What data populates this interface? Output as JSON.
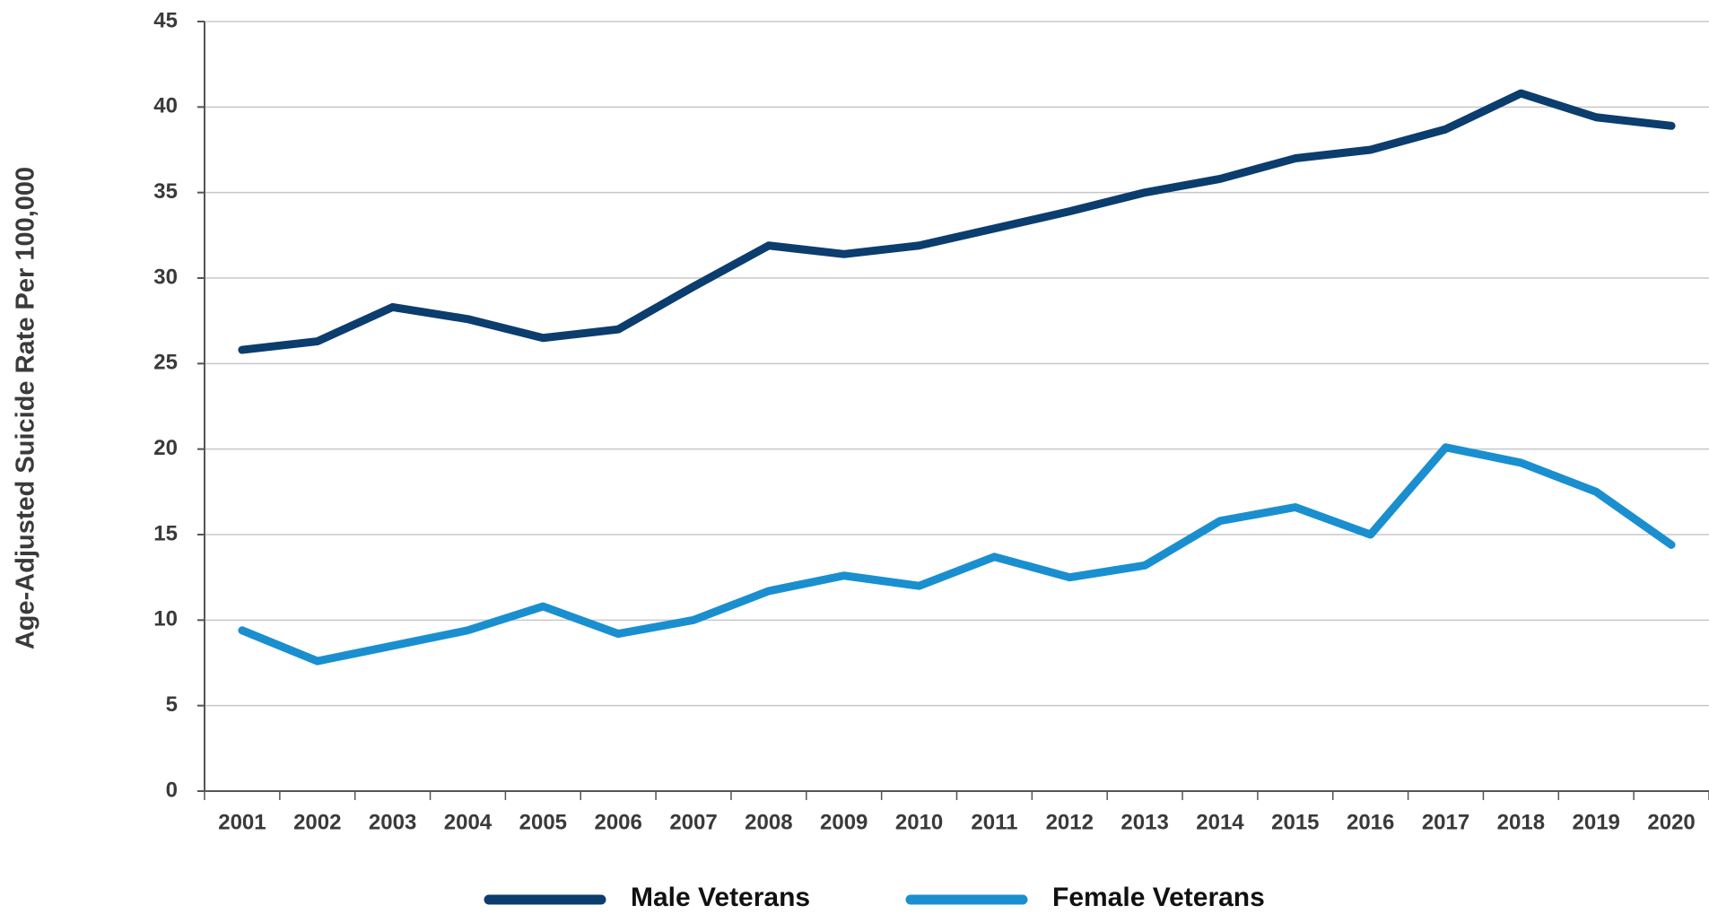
{
  "chart_data": {
    "type": "line",
    "y_label": "Age-Adjusted Suicide Rate Per 100,000",
    "categories": [
      "2001",
      "2002",
      "2003",
      "2004",
      "2005",
      "2006",
      "2007",
      "2008",
      "2009",
      "2010",
      "2011",
      "2012",
      "2013",
      "2014",
      "2015",
      "2016",
      "2017",
      "2018",
      "2019",
      "2020"
    ],
    "series": [
      {
        "name": "Male Veterans",
        "color": "#0b3d6e",
        "values": [
          25.8,
          26.3,
          28.3,
          27.6,
          26.5,
          27.0,
          29.5,
          31.9,
          31.4,
          31.9,
          32.9,
          33.9,
          35.0,
          35.8,
          37.0,
          37.5,
          38.7,
          40.8,
          39.4,
          38.9
        ]
      },
      {
        "name": "Female Veterans",
        "color": "#1a8fd0",
        "values": [
          9.4,
          7.6,
          8.5,
          9.4,
          10.8,
          9.2,
          10.0,
          11.7,
          12.6,
          12.0,
          13.7,
          12.5,
          13.2,
          15.8,
          16.6,
          15.0,
          20.1,
          19.2,
          17.5,
          14.4
        ]
      }
    ],
    "ylim": [
      0,
      45
    ],
    "yticks": [
      0,
      5,
      10,
      15,
      20,
      25,
      30,
      35,
      40,
      45
    ],
    "grid": true
  }
}
